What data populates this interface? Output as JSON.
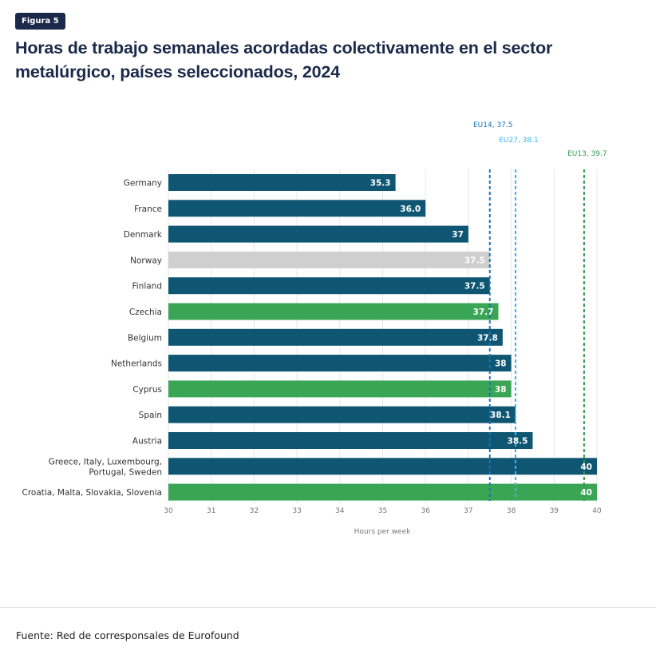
{
  "figure_badge": "Figura 5",
  "title": "Horas de trabajo semanales acordadas colectivamente en el sector metalúrgico, países seleccionados, 2024",
  "source": "Fuente: Red de corresponsales de Eurofound",
  "colors": {
    "eu14_member": "#0f5673",
    "eu13_member": "#3aa655",
    "non_eu": "#cfcfcf",
    "eu14_line": "#1a73b8",
    "eu27_line": "#3db3f0",
    "eu13_line": "#2e9a4a"
  },
  "chart_data": {
    "type": "bar",
    "orientation": "horizontal",
    "title": "Horas de trabajo semanales acordadas colectivamente en el sector metalúrgico, países seleccionados, 2024",
    "xlabel": "Hours per week",
    "ylabel": "",
    "xlim": [
      30,
      40
    ],
    "x_ticks": [
      "30",
      "31",
      "32",
      "33",
      "34",
      "35",
      "36",
      "37",
      "38",
      "39",
      "40"
    ],
    "grid": true,
    "categories": [
      [
        "Germany"
      ],
      [
        "France"
      ],
      [
        "Denmark"
      ],
      [
        "Norway"
      ],
      [
        "Finland"
      ],
      [
        "Czechia"
      ],
      [
        "Belgium"
      ],
      [
        "Netherlands"
      ],
      [
        "Cyprus"
      ],
      [
        "Spain"
      ],
      [
        "Austria"
      ],
      [
        "Greece, Italy, Luxembourg,",
        "Portugal, Sweden"
      ],
      [
        "Croatia, Malta, Slovakia, Slovenia"
      ]
    ],
    "values": [
      35.3,
      36.0,
      37,
      37.5,
      37.5,
      37.7,
      37.8,
      38,
      38,
      38.1,
      38.5,
      40,
      40
    ],
    "data_labels": [
      "35.3",
      "36.0",
      "37",
      "37.5",
      "37.5",
      "37.7",
      "37.8",
      "38",
      "38",
      "38.1",
      "38.5",
      "40",
      "40"
    ],
    "groups": [
      "eu14",
      "eu14",
      "eu14",
      "non_eu",
      "eu14",
      "eu13",
      "eu14",
      "eu14",
      "eu13",
      "eu14",
      "eu14",
      "eu14",
      "eu13"
    ],
    "reference_lines": [
      {
        "label": "EU14, 37.5",
        "value": 37.5,
        "group": "eu14_line"
      },
      {
        "label": "EU27, 38.1",
        "value": 38.1,
        "group": "eu27_line"
      },
      {
        "label": "EU13, 39.7",
        "value": 39.7,
        "group": "eu13_line"
      }
    ]
  }
}
